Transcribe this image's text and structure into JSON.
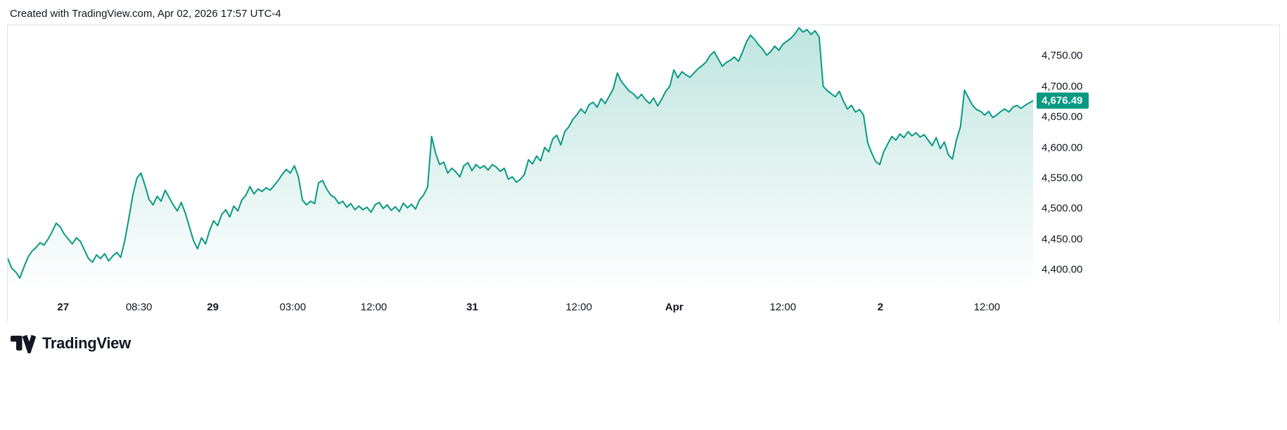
{
  "attribution": "Created with TradingView.com, Apr 02, 2026 17:57 UTC-4",
  "footer": {
    "brand": "TradingView"
  },
  "chart_data": {
    "type": "area",
    "title": "",
    "legend_position": "none",
    "grid": false,
    "line_color": "#089981",
    "fill_opacity_top": 0.26,
    "badge_color": "#089981",
    "text_color": "#131722",
    "border_color": "#e0e3eb",
    "last_price": 4676.49,
    "last_price_label": "4,676.49",
    "xlabel": "",
    "ylabel": "",
    "y_domain": [
      4362,
      4800
    ],
    "y_ticks": [
      {
        "label": "4,750.00",
        "value": 4750
      },
      {
        "label": "4,700.00",
        "value": 4700
      },
      {
        "label": "4,650.00",
        "value": 4650
      },
      {
        "label": "4,600.00",
        "value": 4600
      },
      {
        "label": "4,550.00",
        "value": 4550
      },
      {
        "label": "4,500.00",
        "value": 4500
      },
      {
        "label": "4,450.00",
        "value": 4450
      },
      {
        "label": "4,400.00",
        "value": 4400
      }
    ],
    "x_labels": [
      {
        "label": "27",
        "pos": 0.054,
        "major": true
      },
      {
        "label": "08:30",
        "pos": 0.128,
        "major": false
      },
      {
        "label": "29",
        "pos": 0.2,
        "major": true
      },
      {
        "label": "03:00",
        "pos": 0.278,
        "major": false
      },
      {
        "label": "12:00",
        "pos": 0.357,
        "major": false
      },
      {
        "label": "31",
        "pos": 0.453,
        "major": true
      },
      {
        "label": "12:00",
        "pos": 0.557,
        "major": false
      },
      {
        "label": "Apr",
        "pos": 0.65,
        "major": true
      },
      {
        "label": "12:00",
        "pos": 0.756,
        "major": false
      },
      {
        "label": "2",
        "pos": 0.851,
        "major": true
      },
      {
        "label": "12:00",
        "pos": 0.955,
        "major": false
      }
    ],
    "values": [
      4418,
      4402,
      4396,
      4386,
      4404,
      4420,
      4430,
      4436,
      4444,
      4440,
      4450,
      4462,
      4476,
      4470,
      4458,
      4450,
      4442,
      4452,
      4446,
      4432,
      4418,
      4412,
      4424,
      4418,
      4426,
      4414,
      4422,
      4428,
      4420,
      4448,
      4484,
      4522,
      4550,
      4558,
      4538,
      4515,
      4506,
      4520,
      4512,
      4530,
      4518,
      4506,
      4496,
      4510,
      4492,
      4470,
      4448,
      4434,
      4452,
      4442,
      4464,
      4480,
      4472,
      4490,
      4498,
      4486,
      4504,
      4496,
      4514,
      4522,
      4536,
      4524,
      4532,
      4528,
      4534,
      4530,
      4538,
      4546,
      4556,
      4564,
      4558,
      4570,
      4552,
      4514,
      4506,
      4512,
      4508,
      4542,
      4546,
      4532,
      4522,
      4518,
      4508,
      4512,
      4502,
      4508,
      4498,
      4504,
      4498,
      4502,
      4494,
      4506,
      4510,
      4500,
      4506,
      4497,
      4503,
      4495,
      4509,
      4501,
      4507,
      4499,
      4514,
      4522,
      4535,
      4618,
      4590,
      4572,
      4576,
      4558,
      4566,
      4560,
      4552,
      4570,
      4575,
      4562,
      4572,
      4566,
      4570,
      4563,
      4572,
      4568,
      4561,
      4566,
      4548,
      4552,
      4543,
      4548,
      4556,
      4580,
      4573,
      4586,
      4578,
      4600,
      4593,
      4614,
      4620,
      4604,
      4626,
      4634,
      4646,
      4654,
      4663,
      4656,
      4670,
      4674,
      4666,
      4680,
      4672,
      4684,
      4696,
      4722,
      4708,
      4700,
      4692,
      4688,
      4680,
      4687,
      4678,
      4672,
      4681,
      4668,
      4679,
      4692,
      4700,
      4727,
      4714,
      4724,
      4719,
      4715,
      4722,
      4729,
      4734,
      4740,
      4751,
      4757,
      4745,
      4733,
      4739,
      4743,
      4748,
      4741,
      4756,
      4773,
      4784,
      4777,
      4768,
      4761,
      4751,
      4757,
      4766,
      4759,
      4769,
      4774,
      4779,
      4786,
      4796,
      4789,
      4793,
      4785,
      4791,
      4781,
      4700,
      4693,
      4688,
      4683,
      4692,
      4676,
      4663,
      4669,
      4658,
      4662,
      4653,
      4608,
      4591,
      4577,
      4572,
      4593,
      4606,
      4618,
      4612,
      4622,
      4616,
      4626,
      4619,
      4624,
      4617,
      4621,
      4612,
      4603,
      4616,
      4598,
      4609,
      4588,
      4581,
      4612,
      4634,
      4694,
      4681,
      4669,
      4662,
      4659,
      4653,
      4659,
      4649,
      4653,
      4659,
      4663,
      4658,
      4666,
      4669,
      4664,
      4669,
      4673,
      4676.49
    ]
  }
}
